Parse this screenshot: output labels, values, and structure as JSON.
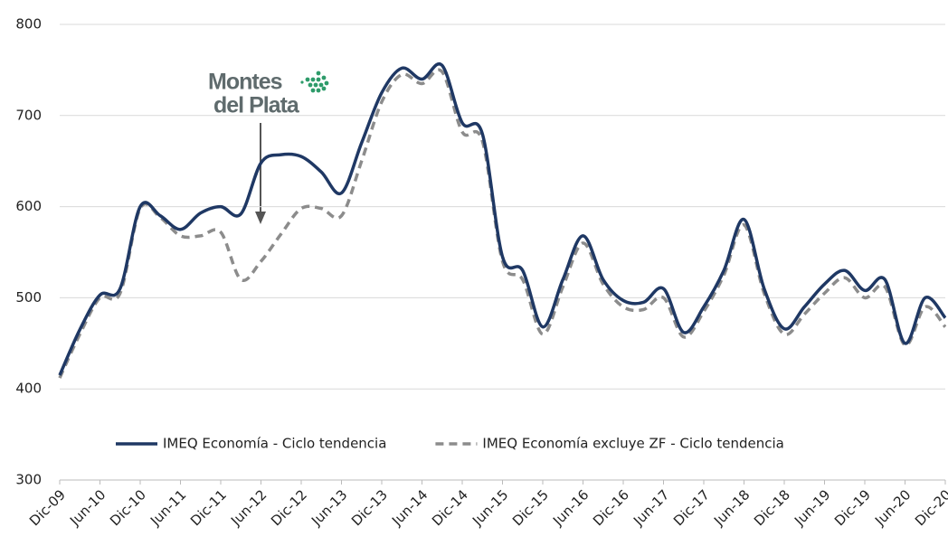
{
  "chart_data": {
    "type": "line",
    "categories": [
      "Dic-09",
      null,
      "Jun-10",
      null,
      "Dic-10",
      null,
      "Jun-11",
      null,
      "Dic-11",
      null,
      "Jun-12",
      null,
      "Dic-12",
      null,
      "Jun-13",
      null,
      "Dic-13",
      null,
      "Jun-14",
      null,
      "Dic-14",
      null,
      "Jun-15",
      null,
      "Dic-15",
      null,
      "Jun-16",
      null,
      "Dic-16",
      null,
      "Jun-17",
      null,
      "Dic-17",
      null,
      "Jun-18",
      null,
      "Dic-18",
      null,
      "Jun-19",
      null,
      "Dic-19",
      null,
      "Jun-20",
      null,
      "Dic-20"
    ],
    "series": [
      {
        "name": "IMEQ Economía - Ciclo tendencia",
        "color": "#1f3864",
        "dash": false,
        "values": [
          415,
          465,
          503,
          510,
          600,
          590,
          575,
          593,
          600,
          592,
          648,
          657,
          655,
          638,
          615,
          670,
          725,
          752,
          740,
          755,
          692,
          680,
          545,
          530,
          468,
          520,
          568,
          520,
          497,
          495,
          510,
          462,
          490,
          530,
          586,
          510,
          466,
          490,
          515,
          530,
          508,
          520,
          450,
          500,
          478
        ]
      },
      {
        "name": "IMEQ Economía excluye ZF - Ciclo tendencia",
        "color": "#8c8c8c",
        "dash": true,
        "values": [
          412,
          460,
          500,
          505,
          598,
          588,
          568,
          568,
          572,
          520,
          540,
          570,
          598,
          598,
          590,
          650,
          715,
          745,
          735,
          748,
          682,
          672,
          540,
          520,
          460,
          512,
          560,
          515,
          490,
          487,
          500,
          457,
          485,
          525,
          580,
          505,
          460,
          482,
          505,
          522,
          500,
          512,
          448,
          490,
          468
        ]
      }
    ],
    "ylim": [
      300,
      800
    ],
    "yticks": [
      300,
      400,
      500,
      600,
      700,
      800
    ],
    "grid": true,
    "legend": "inside-bottom",
    "annotations": [
      "Montes",
      "del Plata"
    ]
  }
}
